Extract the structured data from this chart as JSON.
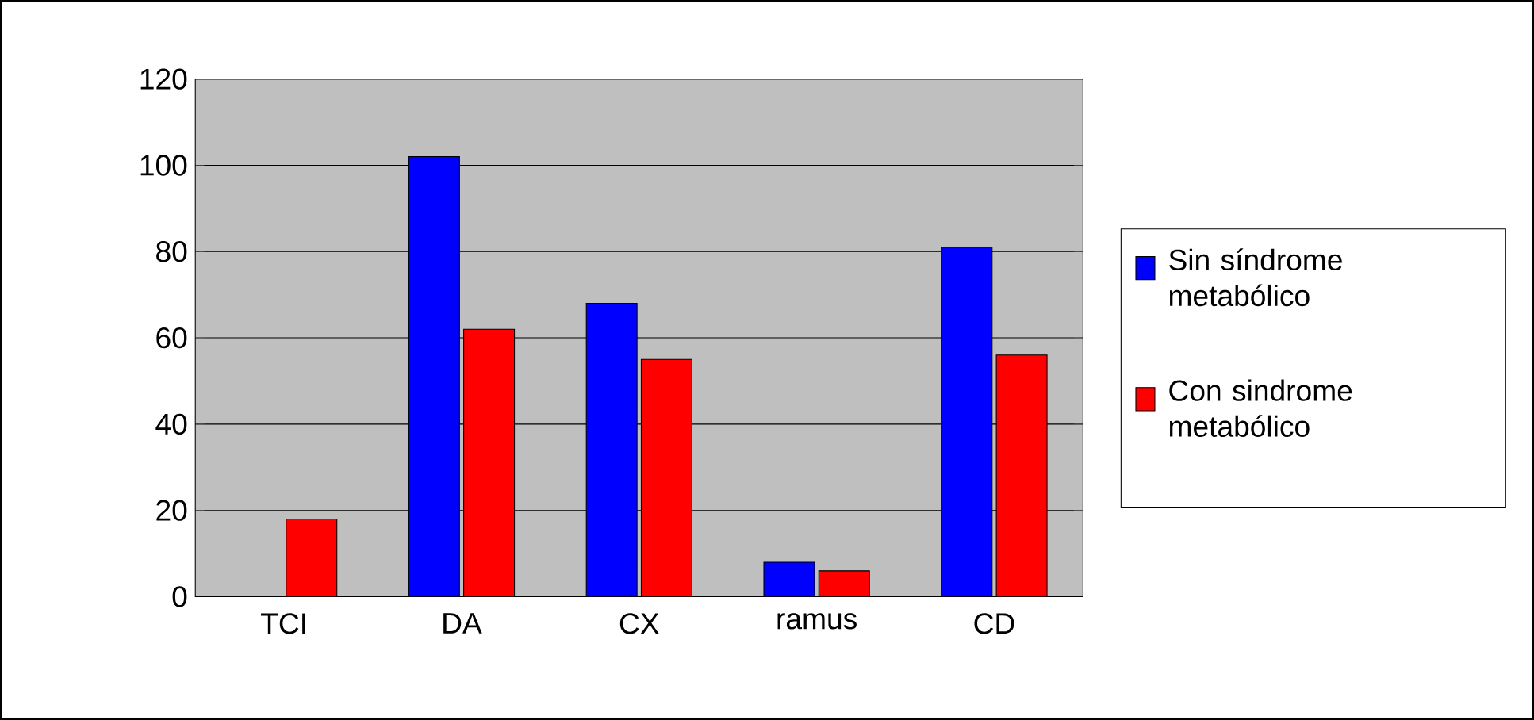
{
  "chart_data": {
    "type": "bar",
    "categories": [
      "TCI",
      "DA",
      "CX",
      "ramus",
      "CD"
    ],
    "series": [
      {
        "name": "Sin síndrome metabólico",
        "color": "#0000ff",
        "values": [
          null,
          102,
          68,
          8,
          81
        ]
      },
      {
        "name": "Con sindrome metabólico",
        "color": "#ff0000",
        "values": [
          18,
          62,
          55,
          6,
          56
        ]
      }
    ],
    "ylim": [
      0,
      120
    ],
    "yticks": [
      0,
      20,
      40,
      60,
      80,
      100,
      120
    ],
    "grid": "y",
    "legend": "right"
  }
}
